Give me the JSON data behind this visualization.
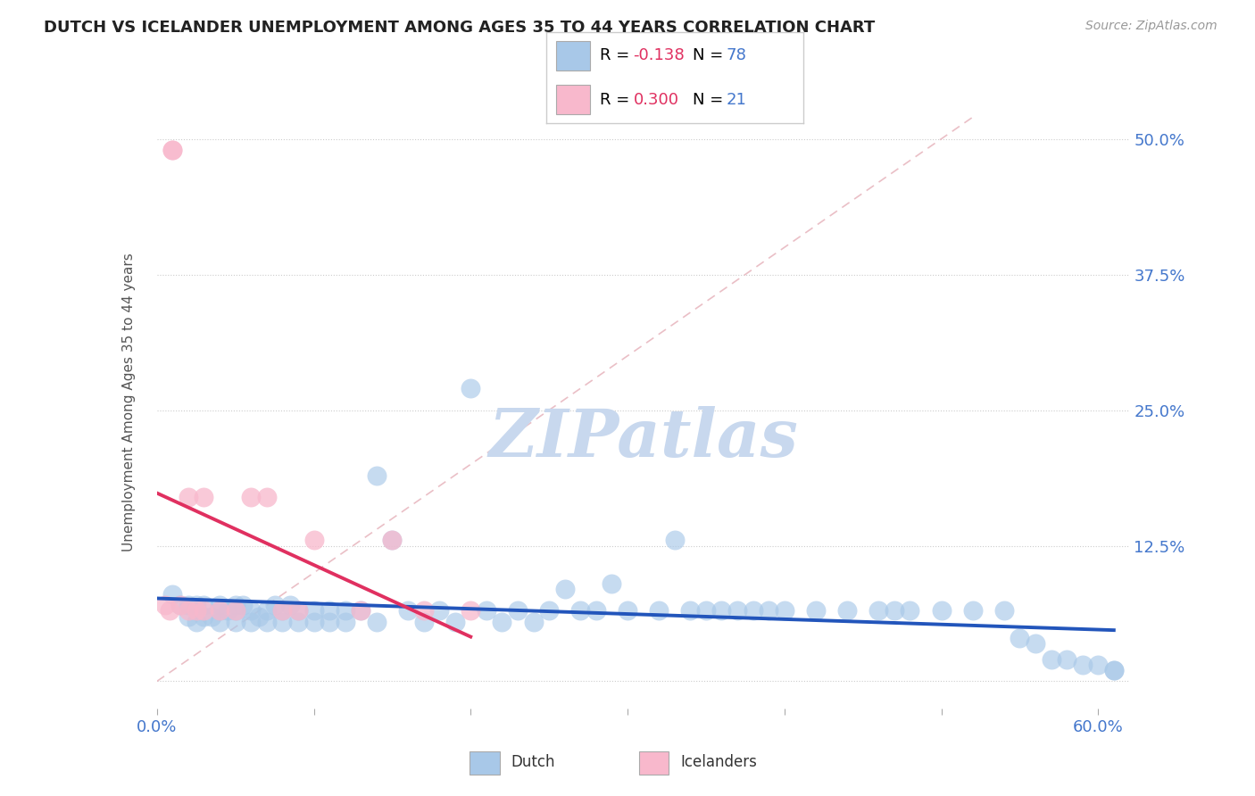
{
  "title": "DUTCH VS ICELANDER UNEMPLOYMENT AMONG AGES 35 TO 44 YEARS CORRELATION CHART",
  "source_text": "Source: ZipAtlas.com",
  "ylabel": "Unemployment Among Ages 35 to 44 years",
  "xlim": [
    0.0,
    0.62
  ],
  "ylim": [
    -0.025,
    0.54
  ],
  "ytick_positions": [
    0.0,
    0.125,
    0.25,
    0.375,
    0.5
  ],
  "ytick_labels": [
    "",
    "12.5%",
    "25.0%",
    "37.5%",
    "50.0%"
  ],
  "dutch_R": -0.138,
  "dutch_N": 78,
  "icelander_R": 0.3,
  "icelander_N": 21,
  "dutch_color": "#a8c8e8",
  "dutch_line_color": "#2255bb",
  "icelander_color": "#f8b8cc",
  "icelander_line_color": "#e03060",
  "diagonal_color": "#e8b8c0",
  "watermark_color": "#c8d8ee",
  "watermark_text": "ZIPatlas",
  "dutch_x": [
    0.01,
    0.015,
    0.02,
    0.02,
    0.025,
    0.025,
    0.03,
    0.03,
    0.035,
    0.04,
    0.04,
    0.04,
    0.045,
    0.05,
    0.05,
    0.05,
    0.055,
    0.06,
    0.06,
    0.065,
    0.07,
    0.07,
    0.075,
    0.08,
    0.08,
    0.085,
    0.09,
    0.09,
    0.1,
    0.1,
    0.11,
    0.11,
    0.12,
    0.12,
    0.13,
    0.14,
    0.14,
    0.15,
    0.16,
    0.17,
    0.18,
    0.19,
    0.2,
    0.21,
    0.22,
    0.23,
    0.24,
    0.25,
    0.26,
    0.27,
    0.28,
    0.29,
    0.3,
    0.32,
    0.33,
    0.34,
    0.35,
    0.36,
    0.37,
    0.38,
    0.39,
    0.4,
    0.42,
    0.44,
    0.46,
    0.47,
    0.48,
    0.5,
    0.52,
    0.54,
    0.55,
    0.56,
    0.57,
    0.58,
    0.59,
    0.6,
    0.61,
    0.61
  ],
  "dutch_y": [
    0.08,
    0.07,
    0.07,
    0.06,
    0.07,
    0.055,
    0.07,
    0.06,
    0.06,
    0.07,
    0.065,
    0.055,
    0.065,
    0.07,
    0.065,
    0.055,
    0.07,
    0.065,
    0.055,
    0.06,
    0.065,
    0.055,
    0.07,
    0.065,
    0.055,
    0.07,
    0.065,
    0.055,
    0.065,
    0.055,
    0.065,
    0.055,
    0.065,
    0.055,
    0.065,
    0.19,
    0.055,
    0.13,
    0.065,
    0.055,
    0.065,
    0.055,
    0.27,
    0.065,
    0.055,
    0.065,
    0.055,
    0.065,
    0.085,
    0.065,
    0.065,
    0.09,
    0.065,
    0.065,
    0.13,
    0.065,
    0.065,
    0.065,
    0.065,
    0.065,
    0.065,
    0.065,
    0.065,
    0.065,
    0.065,
    0.065,
    0.065,
    0.065,
    0.065,
    0.065,
    0.04,
    0.035,
    0.02,
    0.02,
    0.015,
    0.015,
    0.01,
    0.01
  ],
  "icelander_x": [
    0.005,
    0.008,
    0.01,
    0.01,
    0.015,
    0.02,
    0.02,
    0.025,
    0.03,
    0.03,
    0.04,
    0.05,
    0.06,
    0.07,
    0.08,
    0.09,
    0.1,
    0.13,
    0.15,
    0.17,
    0.2
  ],
  "icelander_y": [
    0.07,
    0.065,
    0.49,
    0.49,
    0.07,
    0.065,
    0.17,
    0.065,
    0.17,
    0.065,
    0.065,
    0.065,
    0.17,
    0.17,
    0.065,
    0.065,
    0.13,
    0.065,
    0.13,
    0.065,
    0.065
  ]
}
